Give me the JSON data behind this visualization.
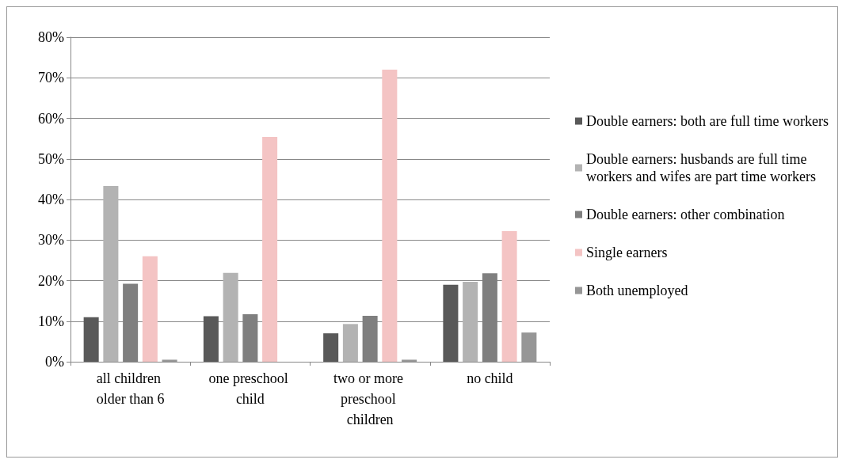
{
  "chart_data": {
    "type": "bar",
    "categories": [
      "all children older than 6",
      "one preschool child",
      "two or more preschool children",
      "no child"
    ],
    "series": [
      {
        "name": "Double earners: both are full time workers",
        "color": "#595959",
        "values": [
          11,
          11.2,
          7,
          19
        ]
      },
      {
        "name": "Double earners: husbands are full time workers and wifes are part time workers",
        "color": "#b3b3b3",
        "values": [
          43.3,
          21.9,
          9.3,
          19.7
        ]
      },
      {
        "name": "Double earners: other combination",
        "color": "#7f7f7f",
        "values": [
          19.2,
          11.7,
          11.3,
          21.8
        ]
      },
      {
        "name": "Single earners",
        "color": "#f4c4c4",
        "values": [
          26,
          55.4,
          72,
          32.2
        ]
      },
      {
        "name": "Both unemployed",
        "color": "#969696",
        "values": [
          0.5,
          0,
          0.5,
          7.2
        ]
      }
    ],
    "ylim": [
      0,
      80
    ],
    "yticks": [
      {
        "value": 0,
        "label": "0%"
      },
      {
        "value": 10,
        "label": "10%"
      },
      {
        "value": 20,
        "label": "20%"
      },
      {
        "value": 30,
        "label": "30%"
      },
      {
        "value": 40,
        "label": "40%"
      },
      {
        "value": 50,
        "label": "50%"
      },
      {
        "value": 60,
        "label": "60%"
      },
      {
        "value": 70,
        "label": "70%"
      },
      {
        "value": 80,
        "label": "80%"
      }
    ],
    "grid": "y",
    "legend": "right"
  }
}
